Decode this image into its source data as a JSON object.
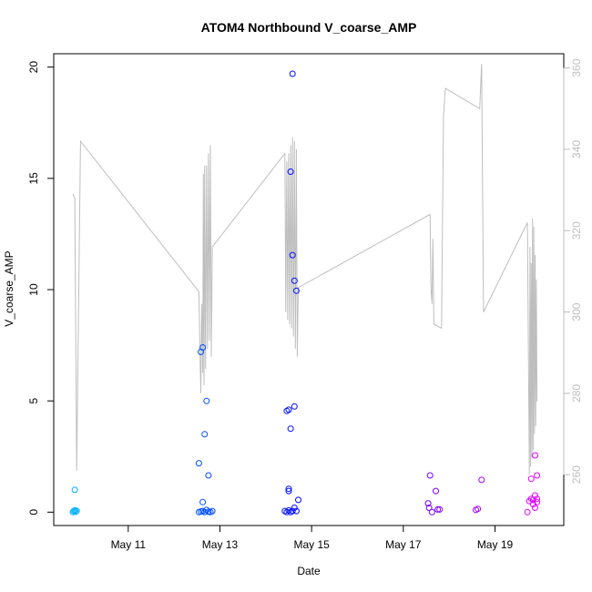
{
  "chart_data": {
    "type": "scatter",
    "title": "ATOM4 Northbound V_coarse_AMP",
    "xlabel": "Date",
    "ylabel": "V_coarse_AMP",
    "xlim": [
      "2016-05-09T09:00",
      "2016-05-20T12:00"
    ],
    "ylim": [
      -0.6,
      20.6
    ],
    "y2lim": [
      247.5,
      363.5
    ],
    "x_ticks": [
      {
        "label": "May 11",
        "x": "2016-05-11T00:00"
      },
      {
        "label": "May 13",
        "x": "2016-05-13T00:00"
      },
      {
        "label": "May 15",
        "x": "2016-05-15T00:00"
      },
      {
        "label": "May 17",
        "x": "2016-05-17T00:00"
      },
      {
        "label": "May 19",
        "x": "2016-05-19T00:00"
      }
    ],
    "y_ticks": [
      "0",
      "5",
      "10",
      "15",
      "20"
    ],
    "y2_ticks": [
      "260",
      "280",
      "300",
      "320",
      "340",
      "360"
    ],
    "grid": false,
    "legend": "none",
    "colors": {
      "points_start": "#00bfff",
      "points_mid": "#0000ff",
      "points_end": "#ff00ff",
      "line": "#bebebe"
    },
    "series": [
      {
        "type": "scatter",
        "axis": "left",
        "points": [
          {
            "x": "2016-05-09T19:00",
            "y": 0.0
          },
          {
            "x": "2016-05-09T19:30",
            "y": 0.05
          },
          {
            "x": "2016-05-09T20:00",
            "y": 0.08
          },
          {
            "x": "2016-05-09T20:30",
            "y": 0.02
          },
          {
            "x": "2016-05-09T21:00",
            "y": 0.06
          },
          {
            "x": "2016-05-09T20:00",
            "y": 1.0
          },
          {
            "x": "2016-05-12T13:00",
            "y": 2.2
          },
          {
            "x": "2016-05-12T14:00",
            "y": 7.2
          },
          {
            "x": "2016-05-12T15:00",
            "y": 7.4
          },
          {
            "x": "2016-05-12T15:00",
            "y": 0.45
          },
          {
            "x": "2016-05-12T16:00",
            "y": 3.5
          },
          {
            "x": "2016-05-12T17:00",
            "y": 5.0
          },
          {
            "x": "2016-05-12T18:00",
            "y": 1.65
          },
          {
            "x": "2016-05-12T13:00",
            "y": 0.0
          },
          {
            "x": "2016-05-12T14:00",
            "y": 0.03
          },
          {
            "x": "2016-05-12T15:00",
            "y": 0.05
          },
          {
            "x": "2016-05-12T16:00",
            "y": 0.0
          },
          {
            "x": "2016-05-12T17:00",
            "y": 0.1
          },
          {
            "x": "2016-05-12T18:00",
            "y": 0.02
          },
          {
            "x": "2016-05-12T19:00",
            "y": 0.0
          },
          {
            "x": "2016-05-12T20:00",
            "y": 0.05
          },
          {
            "x": "2016-05-14T11:00",
            "y": 4.55
          },
          {
            "x": "2016-05-14T12:00",
            "y": 4.6
          },
          {
            "x": "2016-05-14T13:00",
            "y": 3.75
          },
          {
            "x": "2016-05-14T13:00",
            "y": 15.3
          },
          {
            "x": "2016-05-14T14:00",
            "y": 19.7
          },
          {
            "x": "2016-05-14T14:00",
            "y": 11.55
          },
          {
            "x": "2016-05-14T15:00",
            "y": 10.4
          },
          {
            "x": "2016-05-14T16:00",
            "y": 9.95
          },
          {
            "x": "2016-05-14T15:00",
            "y": 4.75
          },
          {
            "x": "2016-05-14T17:00",
            "y": 0.55
          },
          {
            "x": "2016-05-14T12:00",
            "y": 1.05
          },
          {
            "x": "2016-05-14T12:00",
            "y": 0.95
          },
          {
            "x": "2016-05-14T10:00",
            "y": 0.05
          },
          {
            "x": "2016-05-14T11:00",
            "y": 0.0
          },
          {
            "x": "2016-05-14T12:00",
            "y": 0.08
          },
          {
            "x": "2016-05-14T13:00",
            "y": 0.0
          },
          {
            "x": "2016-05-14T14:00",
            "y": 0.05
          },
          {
            "x": "2016-05-14T15:00",
            "y": 0.2
          },
          {
            "x": "2016-05-14T16:00",
            "y": 0.05
          },
          {
            "x": "2016-05-17T13:00",
            "y": 0.4
          },
          {
            "x": "2016-05-17T13:30",
            "y": 0.2
          },
          {
            "x": "2016-05-17T14:00",
            "y": 1.65
          },
          {
            "x": "2016-05-17T15:00",
            "y": 0.0
          },
          {
            "x": "2016-05-17T17:00",
            "y": 0.95
          },
          {
            "x": "2016-05-17T18:00",
            "y": 0.12
          },
          {
            "x": "2016-05-17T19:00",
            "y": 0.12
          },
          {
            "x": "2016-05-18T14:00",
            "y": 0.1
          },
          {
            "x": "2016-05-18T15:00",
            "y": 0.15
          },
          {
            "x": "2016-05-18T17:00",
            "y": 1.45
          },
          {
            "x": "2016-05-19T17:00",
            "y": 0.0
          },
          {
            "x": "2016-05-19T18:00",
            "y": 0.5
          },
          {
            "x": "2016-05-19T19:00",
            "y": 1.5
          },
          {
            "x": "2016-05-19T19:00",
            "y": 0.6
          },
          {
            "x": "2016-05-19T20:00",
            "y": 0.35
          },
          {
            "x": "2016-05-19T20:00",
            "y": 0.55
          },
          {
            "x": "2016-05-19T21:00",
            "y": 0.2
          },
          {
            "x": "2016-05-19T21:00",
            "y": 2.55
          },
          {
            "x": "2016-05-19T21:00",
            "y": 0.75
          },
          {
            "x": "2016-05-19T22:00",
            "y": 1.65
          },
          {
            "x": "2016-05-19T22:00",
            "y": 0.6
          },
          {
            "x": "2016-05-19T22:00",
            "y": 0.45
          }
        ]
      },
      {
        "type": "line",
        "axis": "right",
        "points": [
          {
            "x": "2016-05-09T19:00",
            "y": 329
          },
          {
            "x": "2016-05-09T20:00",
            "y": 328
          },
          {
            "x": "2016-05-09T21:00",
            "y": 261
          },
          {
            "x": "2016-05-09T23:00",
            "y": 342
          },
          {
            "x": "2016-05-12T13:00",
            "y": 305
          },
          {
            "x": "2016-05-12T13:30",
            "y": 292
          },
          {
            "x": "2016-05-12T14:00",
            "y": 280
          },
          {
            "x": "2016-05-12T14:30",
            "y": 302
          },
          {
            "x": "2016-05-12T15:00",
            "y": 285
          },
          {
            "x": "2016-05-12T15:20",
            "y": 334
          },
          {
            "x": "2016-05-12T15:40",
            "y": 282
          },
          {
            "x": "2016-05-12T16:00",
            "y": 336
          },
          {
            "x": "2016-05-12T16:30",
            "y": 286
          },
          {
            "x": "2016-05-12T17:00",
            "y": 336
          },
          {
            "x": "2016-05-12T17:30",
            "y": 291
          },
          {
            "x": "2016-05-12T18:00",
            "y": 339
          },
          {
            "x": "2016-05-12T18:30",
            "y": 293
          },
          {
            "x": "2016-05-12T19:00",
            "y": 341
          },
          {
            "x": "2016-05-12T19:30",
            "y": 289
          },
          {
            "x": "2016-05-12T20:00",
            "y": 316
          },
          {
            "x": "2016-05-14T10:00",
            "y": 339
          },
          {
            "x": "2016-05-14T10:30",
            "y": 300
          },
          {
            "x": "2016-05-14T11:00",
            "y": 337
          },
          {
            "x": "2016-05-14T11:30",
            "y": 298
          },
          {
            "x": "2016-05-14T12:00",
            "y": 339
          },
          {
            "x": "2016-05-14T12:30",
            "y": 297
          },
          {
            "x": "2016-05-14T13:00",
            "y": 341
          },
          {
            "x": "2016-05-14T13:30",
            "y": 296
          },
          {
            "x": "2016-05-14T14:00",
            "y": 343
          },
          {
            "x": "2016-05-14T14:30",
            "y": 294
          },
          {
            "x": "2016-05-14T15:00",
            "y": 342
          },
          {
            "x": "2016-05-14T15:30",
            "y": 291
          },
          {
            "x": "2016-05-14T16:00",
            "y": 340
          },
          {
            "x": "2016-05-14T16:30",
            "y": 289
          },
          {
            "x": "2016-05-14T17:00",
            "y": 306
          },
          {
            "x": "2016-05-17T14:00",
            "y": 324
          },
          {
            "x": "2016-05-17T14:30",
            "y": 306
          },
          {
            "x": "2016-05-17T15:00",
            "y": 302
          },
          {
            "x": "2016-05-17T15:30",
            "y": 318
          },
          {
            "x": "2016-05-17T16:00",
            "y": 297
          },
          {
            "x": "2016-05-17T20:00",
            "y": 296
          },
          {
            "x": "2016-05-17T21:00",
            "y": 348
          },
          {
            "x": "2016-05-17T22:00",
            "y": 355
          },
          {
            "x": "2016-05-18T16:00",
            "y": 350
          },
          {
            "x": "2016-05-18T17:00",
            "y": 361
          },
          {
            "x": "2016-05-18T18:00",
            "y": 300
          },
          {
            "x": "2016-05-19T17:00",
            "y": 322
          },
          {
            "x": "2016-05-19T18:00",
            "y": 260
          },
          {
            "x": "2016-05-19T18:20",
            "y": 316
          },
          {
            "x": "2016-05-19T18:40",
            "y": 262
          },
          {
            "x": "2016-05-19T19:00",
            "y": 312
          },
          {
            "x": "2016-05-19T19:20",
            "y": 264
          },
          {
            "x": "2016-05-19T19:40",
            "y": 323
          },
          {
            "x": "2016-05-19T20:00",
            "y": 266
          },
          {
            "x": "2016-05-19T20:20",
            "y": 321
          },
          {
            "x": "2016-05-19T20:40",
            "y": 270
          },
          {
            "x": "2016-05-19T21:00",
            "y": 314
          },
          {
            "x": "2016-05-19T21:20",
            "y": 272
          },
          {
            "x": "2016-05-19T21:40",
            "y": 308
          },
          {
            "x": "2016-05-19T22:00",
            "y": 278
          }
        ]
      }
    ]
  }
}
